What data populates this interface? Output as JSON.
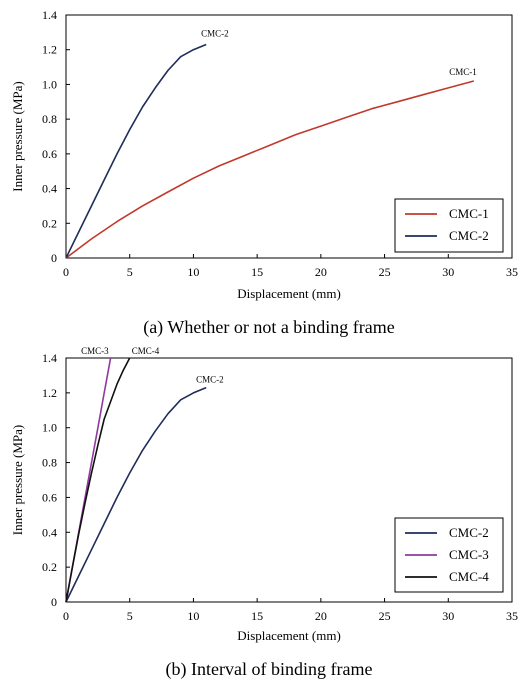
{
  "chart_data": [
    {
      "type": "line",
      "caption": "(a) Whether or not a binding frame",
      "xlabel": "Displacement (mm)",
      "ylabel": "Inner pressure (MPa)",
      "xlim": [
        0,
        35
      ],
      "ylim": [
        0,
        1.4
      ],
      "xticks": [
        "0",
        "5",
        "10",
        "15",
        "20",
        "25",
        "30",
        "35"
      ],
      "yticks": [
        "0",
        "0.2",
        "0.4",
        "0.6",
        "0.8",
        "1.0",
        "1.2",
        "1.4"
      ],
      "grid": false,
      "legend_position": "bottom-right",
      "series": [
        {
          "name": "CMC-1",
          "color": "#c0392b",
          "annotation": "CMC-1",
          "x": [
            0,
            2,
            4,
            6,
            8,
            10,
            12,
            14,
            16,
            18,
            20,
            22,
            24,
            26,
            28,
            30,
            32
          ],
          "y": [
            0,
            0.11,
            0.21,
            0.3,
            0.38,
            0.46,
            0.53,
            0.59,
            0.65,
            0.71,
            0.76,
            0.81,
            0.86,
            0.9,
            0.94,
            0.98,
            1.02
          ]
        },
        {
          "name": "CMC-2",
          "color": "#1f2d5a",
          "annotation": "CMC-2",
          "x": [
            0,
            1,
            2,
            3,
            4,
            5,
            6,
            7,
            8,
            9,
            10,
            11
          ],
          "y": [
            0,
            0.15,
            0.3,
            0.45,
            0.6,
            0.74,
            0.87,
            0.98,
            1.08,
            1.16,
            1.2,
            1.23
          ]
        }
      ]
    },
    {
      "type": "line",
      "caption": "(b) Interval of binding frame",
      "xlabel": "Displacement (mm)",
      "ylabel": "Inner pressure (MPa)",
      "xlim": [
        0,
        35
      ],
      "ylim": [
        0,
        1.4
      ],
      "xticks": [
        "0",
        "5",
        "10",
        "15",
        "20",
        "25",
        "30",
        "35"
      ],
      "yticks": [
        "0",
        "0.2",
        "0.4",
        "0.6",
        "0.8",
        "1.0",
        "1.2",
        "1.4"
      ],
      "grid": false,
      "legend_position": "bottom-right",
      "series": [
        {
          "name": "CMC-2",
          "color": "#1f2d5a",
          "annotation": "CMC-2",
          "x": [
            0,
            1,
            2,
            3,
            4,
            5,
            6,
            7,
            8,
            9,
            10,
            11
          ],
          "y": [
            0,
            0.15,
            0.3,
            0.45,
            0.6,
            0.74,
            0.87,
            0.98,
            1.08,
            1.16,
            1.2,
            1.23
          ]
        },
        {
          "name": "CMC-3",
          "color": "#8e3a9d",
          "annotation": "CMC-3",
          "x": [
            0,
            0.5,
            1,
            1.5,
            2,
            2.5,
            3,
            3.5
          ],
          "y": [
            0,
            0.2,
            0.4,
            0.6,
            0.8,
            1.0,
            1.2,
            1.4
          ]
        },
        {
          "name": "CMC-4",
          "color": "#111111",
          "annotation": "CMC-4",
          "x": [
            0,
            0.5,
            1,
            1.5,
            2,
            2.5,
            3,
            3.5,
            4,
            4.5,
            5
          ],
          "y": [
            0,
            0.2,
            0.39,
            0.57,
            0.74,
            0.9,
            1.05,
            1.15,
            1.25,
            1.33,
            1.4
          ]
        }
      ]
    }
  ]
}
